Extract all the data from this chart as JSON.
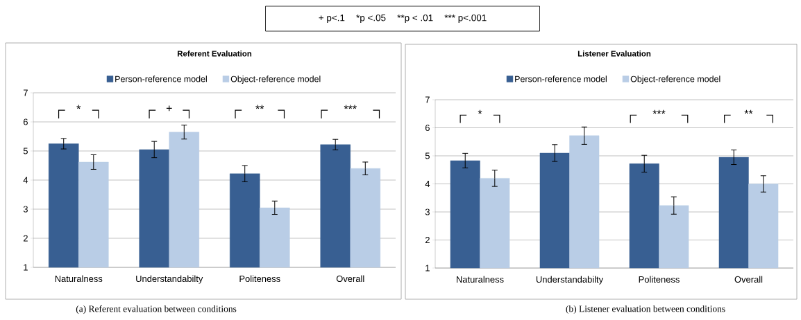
{
  "chart_data": [
    {
      "type": "bar",
      "title": "Referent Evaluation",
      "categories": [
        "Naturalness",
        "Understandabilty",
        "Politeness",
        "Overall"
      ],
      "series": [
        {
          "name": "Person-reference model",
          "color": "#385f92",
          "values": [
            5.25,
            5.05,
            4.22,
            5.22
          ],
          "errors": [
            0.18,
            0.28,
            0.28,
            0.18
          ]
        },
        {
          "name": "Object-reference model",
          "color": "#b9cde6",
          "values": [
            4.62,
            5.65,
            3.05,
            4.4
          ],
          "errors": [
            0.25,
            0.24,
            0.23,
            0.22
          ]
        }
      ],
      "ylim": [
        1,
        7
      ],
      "yticks": [
        1,
        2,
        3,
        4,
        5,
        6,
        7
      ],
      "grid": "y",
      "legend": "top",
      "annotations": [
        "*",
        "+",
        "**",
        "***",
        "+ p<.1",
        "*p <.05",
        "**p < .01",
        "*** p<.001",
        "(a) Referent evaluation between conditions"
      ]
    },
    {
      "type": "bar",
      "title": "Listener Evaluation",
      "categories": [
        "Naturalness",
        "Understandabilty",
        "Politeness",
        "Overall"
      ],
      "series": [
        {
          "name": "Person-reference model",
          "color": "#385f92",
          "values": [
            4.83,
            5.1,
            4.72,
            4.95
          ],
          "errors": [
            0.26,
            0.3,
            0.3,
            0.26
          ]
        },
        {
          "name": "Object-reference model",
          "color": "#b9cde6",
          "values": [
            4.2,
            5.72,
            3.23,
            4.0
          ],
          "errors": [
            0.29,
            0.31,
            0.31,
            0.29
          ]
        }
      ],
      "ylim": [
        1,
        7
      ],
      "yticks": [
        1,
        2,
        3,
        4,
        5,
        6,
        7
      ],
      "grid": "y",
      "legend": "top",
      "annotations": [
        "*",
        "***",
        "**",
        "(b) Listener evaluation between conditions"
      ]
    }
  ]
}
